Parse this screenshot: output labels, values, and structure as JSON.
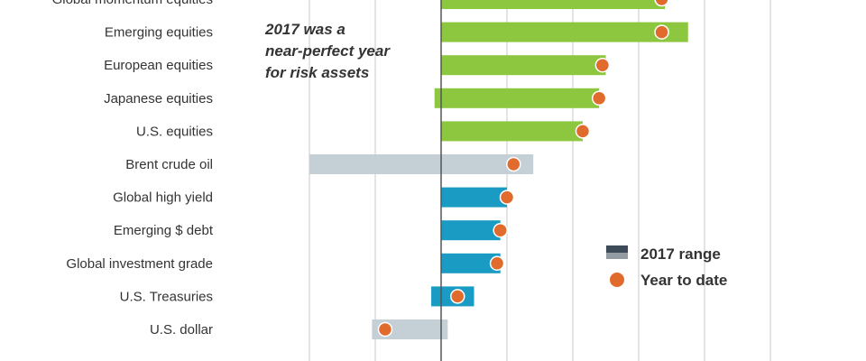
{
  "chart_data": {
    "type": "bar",
    "title": "",
    "xlabel": "",
    "ylabel": "",
    "xlim": [
      -20,
      50
    ],
    "grid": true,
    "legend_position": "bottom-right",
    "categories": [
      "Global momentum equities",
      "Emerging equities",
      "European equities",
      "Japanese equities",
      "U.S. equities",
      "Brent crude oil",
      "Global high yield",
      "Emerging $ debt",
      "Global investment grade",
      "U.S. Treasuries",
      "U.S. dollar"
    ],
    "series": [
      {
        "name": "2017 range",
        "ranges": [
          [
            0,
            34
          ],
          [
            0,
            37.5
          ],
          [
            0,
            25
          ],
          [
            -1,
            24
          ],
          [
            0,
            21.5
          ],
          [
            -20,
            14
          ],
          [
            0,
            10
          ],
          [
            0,
            9
          ],
          [
            0,
            9
          ],
          [
            -1.5,
            5
          ],
          [
            -10.5,
            1
          ]
        ],
        "colors": [
          "#8dc63f",
          "#8dc63f",
          "#8dc63f",
          "#8dc63f",
          "#8dc63f",
          "#c5cfd6",
          "#1a9bc4",
          "#1a9bc4",
          "#1a9bc4",
          "#1a9bc4",
          "#c5cfd6"
        ]
      },
      {
        "name": "Year to date",
        "values": [
          33.5,
          33.5,
          24.5,
          24,
          21.5,
          11,
          10,
          9,
          8.5,
          2.5,
          -8.5
        ],
        "color": "#e06b2d"
      }
    ],
    "annotation": [
      "2017 was a",
      "near-perfect year",
      "for risk assets"
    ],
    "legend_swatch_color": "#3d4a57"
  }
}
